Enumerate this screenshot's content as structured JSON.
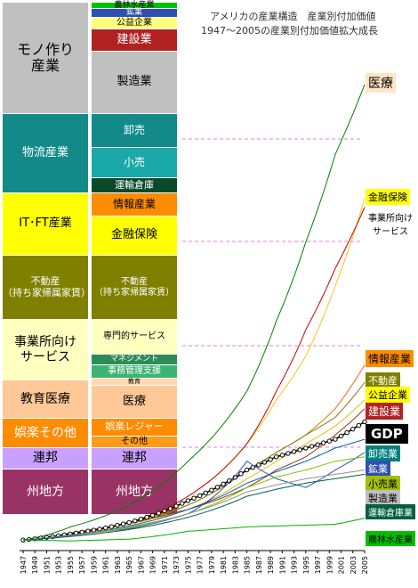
{
  "title_line1": "アメリカの産業構造　産業別付加価値",
  "title_line2": "1947〜2005の産業別付加価値拡大成長",
  "left_column": [
    {
      "label": "モノ作り\n産業",
      "color": "#c0c0c0",
      "text_color": "#000000"
    },
    {
      "label": "物流産業",
      "color": "#128a8a",
      "text_color": "#ffffff"
    },
    {
      "label": "IT･FT産業",
      "color": "#ffff00",
      "text_color": "#000000"
    },
    {
      "label": "不動産\n（持ち家帰属家賃）",
      "color": "#808000",
      "text_color": "#ffffff"
    },
    {
      "label": "事業所向け\nサービス",
      "color": "#ffffc0",
      "text_color": "#000000"
    },
    {
      "label": "教育医療",
      "color": "#ffc896",
      "text_color": "#000000"
    },
    {
      "label": "娯楽その他",
      "color": "#ff8c00",
      "text_color": "#ffffff"
    },
    {
      "label": "連邦",
      "color": "#c8a0ff",
      "text_color": "#000000"
    },
    {
      "label": "州地方",
      "color": "#993366",
      "text_color": "#ffffff"
    }
  ],
  "right_column": [
    {
      "label": "農林水産業",
      "color": "#00c000",
      "text_color": "#000000"
    },
    {
      "label": "鉱業",
      "color": "#3050b0",
      "text_color": "#ffffff"
    },
    {
      "label": "公益企業",
      "color": "#ffff80",
      "text_color": "#000000"
    },
    {
      "label": "建設業",
      "color": "#b22222",
      "text_color": "#ffffff"
    },
    {
      "label": "製造業",
      "color": "#c0c0c0",
      "text_color": "#000000"
    },
    {
      "label": "卸売",
      "color": "#128a8a",
      "text_color": "#ffffff"
    },
    {
      "label": "小売",
      "color": "#1aa8a8",
      "text_color": "#ffffff"
    },
    {
      "label": "運輸倉庫",
      "color": "#0a4a2a",
      "text_color": "#ffffff"
    },
    {
      "label": "情報産業",
      "color": "#ff8c00",
      "text_color": "#000000"
    },
    {
      "label": "金融保険",
      "color": "#ffff00",
      "text_color": "#000000"
    },
    {
      "label": "不動産\n（持ち家帰属家賃）",
      "color": "#808000",
      "text_color": "#ffffff"
    },
    {
      "label": "専門的サービス",
      "color": "#ffffc0",
      "text_color": "#000000"
    },
    {
      "label": "マネジメント",
      "color": "#2e8b57",
      "text_color": "#ffffff"
    },
    {
      "label": "事務管理支援",
      "color": "#3cb371",
      "text_color": "#ffffff"
    },
    {
      "label": "教育",
      "color": "#ffdab0",
      "text_color": "#000000"
    },
    {
      "label": "医療",
      "color": "#ffc896",
      "text_color": "#000000"
    },
    {
      "label": "娯楽レジャー",
      "color": "#ff8c00",
      "text_color": "#ffffff"
    },
    {
      "label": "その他",
      "color": "#ff9a1a",
      "text_color": "#000000"
    },
    {
      "label": "連邦",
      "color": "#c8a0ff",
      "text_color": "#000000"
    },
    {
      "label": "州地方",
      "color": "#993366",
      "text_color": "#ffffff"
    }
  ],
  "chart_data": {
    "type": "line",
    "x_tick_labels": [
      "1947",
      "1949",
      "1951",
      "1953",
      "1955",
      "1957",
      "1959",
      "1961",
      "1963",
      "1965",
      "1967",
      "1969",
      "1971",
      "1973",
      "1975",
      "1977",
      "1979",
      "1981",
      "1983",
      "1985",
      "1987",
      "1989",
      "1991",
      "1993",
      "1995",
      "1997",
      "1999",
      "2001",
      "2003",
      "2005"
    ],
    "x": [
      1947,
      1955,
      1965,
      1975,
      1985,
      1990,
      1995,
      2000,
      2005
    ],
    "ylim": [
      0,
      54
    ],
    "grid": false,
    "series": [
      {
        "name": "医療",
        "color": "#008000",
        "label_bg": "#ffe4c4",
        "label_fg": "#000000",
        "values": [
          1,
          2.5,
          5,
          10,
          18,
          26,
          35,
          45,
          53
        ]
      },
      {
        "name": "金融保険",
        "color": "#ffc020",
        "label_bg": "#ffff00",
        "label_fg": "#000000",
        "values": [
          1,
          1.8,
          3,
          6,
          12,
          17,
          22,
          30,
          40
        ]
      },
      {
        "name": "事業所向け\nサービス",
        "color": "#c00000",
        "label_bg": "#ffffc0",
        "label_fg": "#000000",
        "values": [
          1,
          1.6,
          3,
          6,
          12,
          18,
          25,
          32,
          39
        ]
      },
      {
        "name": "情報産業",
        "color": "#ff6600",
        "label_bg": "#ff8c00",
        "label_fg": "#000000",
        "values": [
          1,
          1.7,
          3,
          5,
          9,
          11,
          13,
          16,
          21
        ]
      },
      {
        "name": "不動産",
        "color": "#808000",
        "label_bg": "#808000",
        "label_fg": "#ffffff",
        "values": [
          1,
          1.6,
          2.8,
          5,
          9,
          11,
          13,
          15,
          19
        ]
      },
      {
        "name": "公益企業",
        "color": "#e0c000",
        "label_bg": "#ffff00",
        "label_fg": "#000000",
        "values": [
          1,
          1.6,
          2.8,
          4.5,
          8,
          10,
          12,
          14,
          17
        ]
      },
      {
        "name": "建設業",
        "color": "#a03000",
        "label_bg": "#b22222",
        "label_fg": "#ffffff",
        "values": [
          1,
          1.8,
          3,
          4.5,
          7,
          9,
          10.5,
          13,
          16
        ]
      },
      {
        "name": "GDP",
        "color": "#000000",
        "label_bg": "#000000",
        "label_fg": "#ffffff",
        "values": [
          1,
          1.7,
          3,
          5.5,
          9,
          10.5,
          11.5,
          12.5,
          14.5
        ]
      },
      {
        "name": "卸売業",
        "color": "#0060c0",
        "label_bg": "#008080",
        "label_fg": "#ffffff",
        "values": [
          1,
          1.5,
          2.6,
          4.5,
          7.5,
          8.8,
          10,
          11.5,
          12.5
        ]
      },
      {
        "name": "鉱業",
        "color": "#3050b0",
        "label_bg": "#3050b0",
        "label_fg": "#ffffff",
        "values": [
          1,
          1.6,
          2.3,
          4,
          10,
          8,
          7,
          9,
          11
        ]
      },
      {
        "name": "小売業",
        "color": "#80c000",
        "label_bg": "#a0c000",
        "label_fg": "#000000",
        "values": [
          1,
          1.5,
          2.4,
          4,
          7,
          8.2,
          9,
          10,
          10.5
        ]
      },
      {
        "name": "製造業",
        "color": "#909090",
        "label_bg": "#c0c0c0",
        "label_fg": "#000000",
        "values": [
          1,
          1.5,
          2.5,
          4,
          6.5,
          7.3,
          8,
          8.5,
          9
        ]
      },
      {
        "name": "運輸倉庫業",
        "color": "#006040",
        "label_bg": "#006040",
        "label_fg": "#ffffff",
        "values": [
          1,
          1.4,
          2.2,
          3.6,
          6,
          6.8,
          7.5,
          8,
          8.5
        ]
      },
      {
        "name": "農林水産業",
        "color": "#00b000",
        "label_bg": "#00c000",
        "label_fg": "#000000",
        "values": [
          1,
          0.9,
          1.1,
          2,
          2.5,
          2.6,
          2.7,
          2.8,
          3.5
        ]
      }
    ]
  }
}
